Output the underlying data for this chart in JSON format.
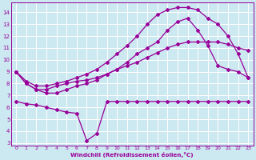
{
  "bg_color": "#cce8f0",
  "grid_color": "#ffffff",
  "line_color": "#990099",
  "xlabel": "Windchill (Refroidissement éolien,°C)",
  "xlim": [
    -0.5,
    23.5
  ],
  "ylim": [
    2.8,
    14.8
  ],
  "yticks": [
    3,
    4,
    5,
    6,
    7,
    8,
    9,
    10,
    11,
    12,
    13,
    14
  ],
  "xticks": [
    0,
    1,
    2,
    3,
    4,
    5,
    6,
    7,
    8,
    9,
    10,
    11,
    12,
    13,
    14,
    15,
    16,
    17,
    18,
    19,
    20,
    21,
    22,
    23
  ],
  "line1_x": [
    0,
    1,
    2,
    3,
    4,
    5,
    6,
    7,
    8,
    9,
    10,
    11,
    12,
    13,
    14,
    15,
    16,
    17,
    18,
    19,
    20,
    21,
    22,
    23
  ],
  "line1_y": [
    6.5,
    6.3,
    6.2,
    6.0,
    5.8,
    5.6,
    5.5,
    3.2,
    3.8,
    6.5,
    6.5,
    6.5,
    6.5,
    6.5,
    6.5,
    6.5,
    6.5,
    6.5,
    6.5,
    6.5,
    6.5,
    6.5,
    6.5,
    6.5
  ],
  "line2_x": [
    0,
    1,
    2,
    3,
    4,
    5,
    6,
    7,
    8,
    9,
    10,
    11,
    12,
    13,
    14,
    15,
    16,
    17,
    18,
    19,
    20,
    21,
    22,
    23
  ],
  "line2_y": [
    9.0,
    8.0,
    7.5,
    7.5,
    7.8,
    8.0,
    8.2,
    8.3,
    8.5,
    8.8,
    9.2,
    9.5,
    9.8,
    10.2,
    10.6,
    11.0,
    11.3,
    11.5,
    11.5,
    11.5,
    11.5,
    11.3,
    11.0,
    10.8
  ],
  "line3_x": [
    0,
    1,
    2,
    3,
    4,
    5,
    6,
    7,
    8,
    9,
    10,
    11,
    12,
    13,
    14,
    15,
    16,
    17,
    18,
    19,
    20,
    21,
    22,
    23
  ],
  "line3_y": [
    9.0,
    8.2,
    7.8,
    7.8,
    8.0,
    8.2,
    8.5,
    8.8,
    9.2,
    9.8,
    10.5,
    11.2,
    12.0,
    13.0,
    13.8,
    14.2,
    14.4,
    14.4,
    14.2,
    13.5,
    13.0,
    12.0,
    10.5,
    8.5
  ],
  "line4_x": [
    0,
    1,
    2,
    3,
    4,
    5,
    6,
    7,
    8,
    9,
    10,
    11,
    12,
    13,
    14,
    15,
    16,
    17,
    18,
    19,
    20,
    21,
    22,
    23
  ],
  "line4_y": [
    9.0,
    8.0,
    7.5,
    7.2,
    7.2,
    7.5,
    7.8,
    8.0,
    8.3,
    8.8,
    9.2,
    9.8,
    10.5,
    11.0,
    11.5,
    12.5,
    13.2,
    13.5,
    12.5,
    11.2,
    9.5,
    9.2,
    9.0,
    8.5
  ],
  "marker": "D",
  "markersize": 2.0,
  "linewidth": 0.9
}
